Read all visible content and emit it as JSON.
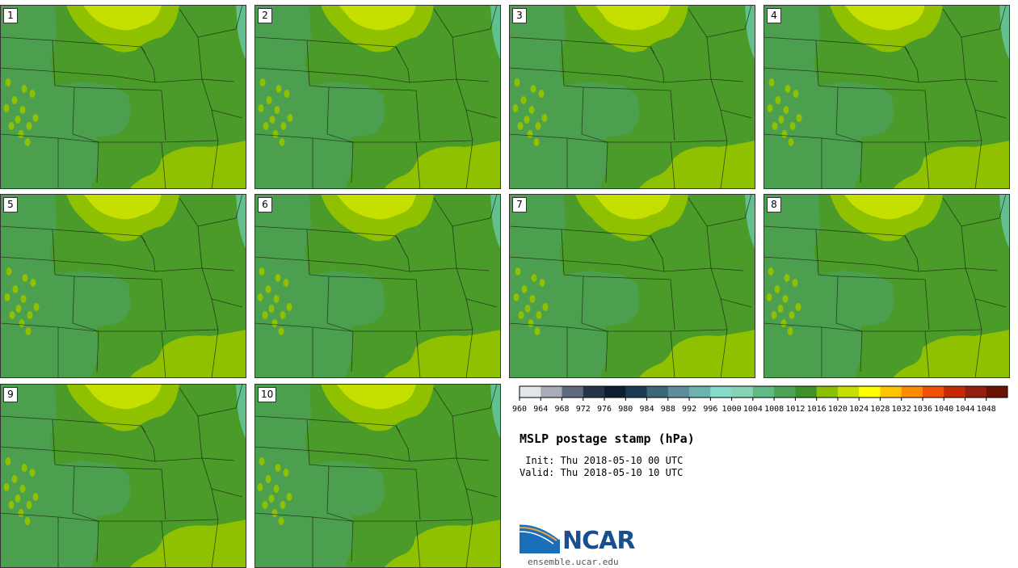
{
  "product": {
    "title": "MSLP postage stamp (hPa)",
    "init": " Init: Thu 2018-05-10 00 UTC",
    "valid": "Valid: Thu 2018-05-10 10 UTC"
  },
  "members": [
    "1",
    "2",
    "3",
    "4",
    "5",
    "6",
    "7",
    "8",
    "9",
    "10"
  ],
  "colorbar": {
    "unit": "hPa",
    "ticks": [
      "960",
      "964",
      "968",
      "972",
      "976",
      "980",
      "984",
      "988",
      "992",
      "996",
      "1000",
      "1004",
      "1008",
      "1012",
      "1016",
      "1020",
      "1024",
      "1028",
      "1032",
      "1036",
      "1040",
      "1044",
      "1048"
    ],
    "colors": [
      "#e2e6ea",
      "#a9acb8",
      "#5f6a7d",
      "#253449",
      "#0e1f33",
      "#1d3a55",
      "#3e6679",
      "#5d8e9a",
      "#6db3ad",
      "#86dcc8",
      "#86d4b5",
      "#5fba86",
      "#4ea355",
      "#3e9128",
      "#8cbf00",
      "#c4df00",
      "#ffff00",
      "#ffc400",
      "#ff8c00",
      "#f05006",
      "#c62808",
      "#931f0f",
      "#6a1205"
    ]
  },
  "logo": {
    "name": "NCAR",
    "url": "ensemble.ucar.edu"
  },
  "map_colors": {
    "pressure_1008": "#4d9f50",
    "pressure_1012": "#4a9b2a",
    "pressure_1016": "#8fc100",
    "pressure_1020": "#c4df00",
    "pressure_1004": "#62bf8e",
    "borders": "#1a2a10"
  }
}
